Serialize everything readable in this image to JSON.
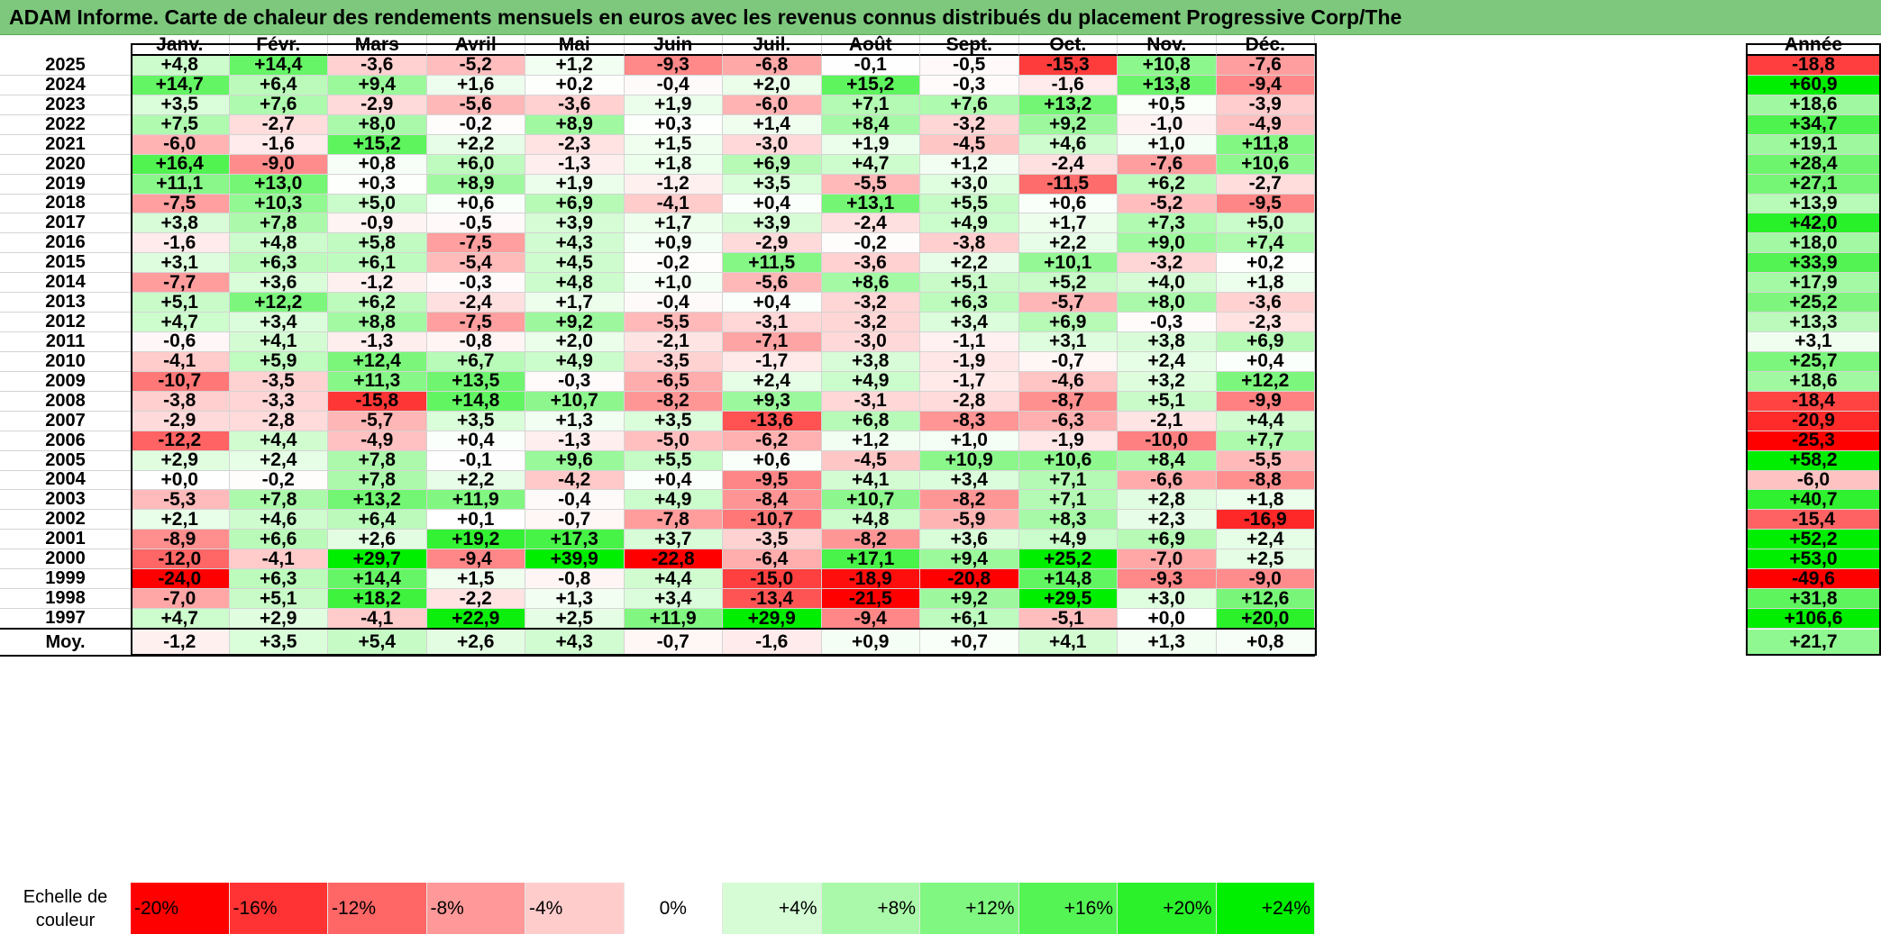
{
  "title": "ADAM Informe. Carte de chaleur des rendements mensuels en euros avec les revenus connus distribués du placement Progressive Corp/The",
  "chart_data": {
    "type": "heatmap",
    "columns": [
      "Janv.",
      "Févr.",
      "Mars",
      "Avril",
      "Mai",
      "Juin",
      "Juil.",
      "Août",
      "Sept.",
      "Oct.",
      "Nov.",
      "Déc."
    ],
    "annual_header": "Année",
    "rows": [
      {
        "year": "2025",
        "values": [
          "+4,8",
          "+14,4",
          "-3,6",
          "-5,2",
          "+1,2",
          "-9,3",
          "-6,8",
          "-0,1",
          "-0,5",
          "-15,3",
          "+10,8",
          "-7,6"
        ],
        "annual": "-18,8"
      },
      {
        "year": "2024",
        "values": [
          "+14,7",
          "+6,4",
          "+9,4",
          "+1,6",
          "+0,2",
          "-0,4",
          "+2,0",
          "+15,2",
          "-0,3",
          "-1,6",
          "+13,8",
          "-9,4"
        ],
        "annual": "+60,9"
      },
      {
        "year": "2023",
        "values": [
          "+3,5",
          "+7,6",
          "-2,9",
          "-5,6",
          "-3,6",
          "+1,9",
          "-6,0",
          "+7,1",
          "+7,6",
          "+13,2",
          "+0,5",
          "-3,9"
        ],
        "annual": "+18,6"
      },
      {
        "year": "2022",
        "values": [
          "+7,5",
          "-2,7",
          "+8,0",
          "-0,2",
          "+8,9",
          "+0,3",
          "+1,4",
          "+8,4",
          "-3,2",
          "+9,2",
          "-1,0",
          "-4,9"
        ],
        "annual": "+34,7"
      },
      {
        "year": "2021",
        "values": [
          "-6,0",
          "-1,6",
          "+15,2",
          "+2,2",
          "-2,3",
          "+1,5",
          "-3,0",
          "+1,9",
          "-4,5",
          "+4,6",
          "+1,0",
          "+11,8"
        ],
        "annual": "+19,1"
      },
      {
        "year": "2020",
        "values": [
          "+16,4",
          "-9,0",
          "+0,8",
          "+6,0",
          "-1,3",
          "+1,8",
          "+6,9",
          "+4,7",
          "+1,2",
          "-2,4",
          "-7,6",
          "+10,6"
        ],
        "annual": "+28,4"
      },
      {
        "year": "2019",
        "values": [
          "+11,1",
          "+13,0",
          "+0,3",
          "+8,9",
          "+1,9",
          "-1,2",
          "+3,5",
          "-5,5",
          "+3,0",
          "-11,5",
          "+6,2",
          "-2,7"
        ],
        "annual": "+27,1"
      },
      {
        "year": "2018",
        "values": [
          "-7,5",
          "+10,3",
          "+5,0",
          "+0,6",
          "+6,9",
          "-4,1",
          "+0,4",
          "+13,1",
          "+5,5",
          "+0,6",
          "-5,2",
          "-9,5"
        ],
        "annual": "+13,9"
      },
      {
        "year": "2017",
        "values": [
          "+3,8",
          "+7,8",
          "-0,9",
          "-0,5",
          "+3,9",
          "+1,7",
          "+3,9",
          "-2,4",
          "+4,9",
          "+1,7",
          "+7,3",
          "+5,0"
        ],
        "annual": "+42,0"
      },
      {
        "year": "2016",
        "values": [
          "-1,6",
          "+4,8",
          "+5,8",
          "-7,5",
          "+4,3",
          "+0,9",
          "-2,9",
          "-0,2",
          "-3,8",
          "+2,2",
          "+9,0",
          "+7,4"
        ],
        "annual": "+18,0"
      },
      {
        "year": "2015",
        "values": [
          "+3,1",
          "+6,3",
          "+6,1",
          "-5,4",
          "+4,5",
          "-0,2",
          "+11,5",
          "-3,6",
          "+2,2",
          "+10,1",
          "-3,2",
          "+0,2"
        ],
        "annual": "+33,9"
      },
      {
        "year": "2014",
        "values": [
          "-7,7",
          "+3,6",
          "-1,2",
          "-0,3",
          "+4,8",
          "+1,0",
          "-5,6",
          "+8,6",
          "+5,1",
          "+5,2",
          "+4,0",
          "+1,8"
        ],
        "annual": "+17,9"
      },
      {
        "year": "2013",
        "values": [
          "+5,1",
          "+12,2",
          "+6,2",
          "-2,4",
          "+1,7",
          "-0,4",
          "+0,4",
          "-3,2",
          "+6,3",
          "-5,7",
          "+8,0",
          "-3,6"
        ],
        "annual": "+25,2"
      },
      {
        "year": "2012",
        "values": [
          "+4,7",
          "+3,4",
          "+8,8",
          "-7,5",
          "+9,2",
          "-5,5",
          "-3,1",
          "-3,2",
          "+3,4",
          "+6,9",
          "-0,3",
          "-2,3"
        ],
        "annual": "+13,3"
      },
      {
        "year": "2011",
        "values": [
          "-0,6",
          "+4,1",
          "-1,3",
          "-0,8",
          "+2,0",
          "-2,1",
          "-7,1",
          "-3,0",
          "-1,1",
          "+3,1",
          "+3,8",
          "+6,9"
        ],
        "annual": "+3,1"
      },
      {
        "year": "2010",
        "values": [
          "-4,1",
          "+5,9",
          "+12,4",
          "+6,7",
          "+4,9",
          "-3,5",
          "-1,7",
          "+3,8",
          "-1,9",
          "-0,7",
          "+2,4",
          "+0,4"
        ],
        "annual": "+25,7"
      },
      {
        "year": "2009",
        "values": [
          "-10,7",
          "-3,5",
          "+11,3",
          "+13,5",
          "-0,3",
          "-6,5",
          "+2,4",
          "+4,9",
          "-1,7",
          "-4,6",
          "+3,2",
          "+12,2"
        ],
        "annual": "+18,6"
      },
      {
        "year": "2008",
        "values": [
          "-3,8",
          "-3,3",
          "-15,8",
          "+14,8",
          "+10,7",
          "-8,2",
          "+9,3",
          "-3,1",
          "-2,8",
          "-8,7",
          "+5,1",
          "-9,9"
        ],
        "annual": "-18,4"
      },
      {
        "year": "2007",
        "values": [
          "-2,9",
          "-2,8",
          "-5,7",
          "+3,5",
          "+1,3",
          "+3,5",
          "-13,6",
          "+6,8",
          "-8,3",
          "-6,3",
          "-2,1",
          "+4,4"
        ],
        "annual": "-20,9"
      },
      {
        "year": "2006",
        "values": [
          "-12,2",
          "+4,4",
          "-4,9",
          "+0,4",
          "-1,3",
          "-5,0",
          "-6,2",
          "+1,2",
          "+1,0",
          "-1,9",
          "-10,0",
          "+7,7"
        ],
        "annual": "-25,3"
      },
      {
        "year": "2005",
        "values": [
          "+2,9",
          "+2,4",
          "+7,8",
          "-0,1",
          "+9,6",
          "+5,5",
          "+0,6",
          "-4,5",
          "+10,9",
          "+10,6",
          "+8,4",
          "-5,5"
        ],
        "annual": "+58,2"
      },
      {
        "year": "2004",
        "values": [
          "+0,0",
          "-0,2",
          "+7,8",
          "+2,2",
          "-4,2",
          "+0,4",
          "-9,5",
          "+4,1",
          "+3,4",
          "+7,1",
          "-6,6",
          "-8,8"
        ],
        "annual": "-6,0"
      },
      {
        "year": "2003",
        "values": [
          "-5,3",
          "+7,8",
          "+13,2",
          "+11,9",
          "-0,4",
          "+4,9",
          "-8,4",
          "+10,7",
          "-8,2",
          "+7,1",
          "+2,8",
          "+1,8"
        ],
        "annual": "+40,7"
      },
      {
        "year": "2002",
        "values": [
          "+2,1",
          "+4,6",
          "+6,4",
          "+0,1",
          "-0,7",
          "-7,8",
          "-10,7",
          "+4,8",
          "-5,9",
          "+8,3",
          "+2,3",
          "-16,9"
        ],
        "annual": "-15,4"
      },
      {
        "year": "2001",
        "values": [
          "-8,9",
          "+6,6",
          "+2,6",
          "+19,2",
          "+17,3",
          "+3,7",
          "-3,5",
          "-8,2",
          "+3,6",
          "+4,9",
          "+6,9",
          "+2,4"
        ],
        "annual": "+52,2"
      },
      {
        "year": "2000",
        "values": [
          "-12,0",
          "-4,1",
          "+29,7",
          "-9,4",
          "+39,9",
          "-22,8",
          "-6,4",
          "+17,1",
          "+9,4",
          "+25,2",
          "-7,0",
          "+2,5"
        ],
        "annual": "+53,0"
      },
      {
        "year": "1999",
        "values": [
          "-24,0",
          "+6,3",
          "+14,4",
          "+1,5",
          "-0,8",
          "+4,4",
          "-15,0",
          "-18,9",
          "-20,8",
          "+14,8",
          "-9,3",
          "-9,0"
        ],
        "annual": "-49,6"
      },
      {
        "year": "1998",
        "values": [
          "-7,0",
          "+5,1",
          "+18,2",
          "-2,2",
          "+1,3",
          "+3,4",
          "-13,4",
          "-21,5",
          "+9,2",
          "+29,5",
          "+3,0",
          "+12,6"
        ],
        "annual": "+31,8"
      },
      {
        "year": "1997",
        "values": [
          "+4,7",
          "+2,9",
          "-4,1",
          "+22,9",
          "+2,5",
          "+11,9",
          "+29,9",
          "-9,4",
          "+6,1",
          "-5,1",
          "+0,0",
          "+20,0"
        ],
        "annual": "+106,6"
      }
    ],
    "average": {
      "label": "Moy.",
      "values": [
        "-1,2",
        "+3,5",
        "+5,4",
        "+2,6",
        "+4,3",
        "-0,7",
        "-1,6",
        "+0,9",
        "+0,7",
        "+4,1",
        "+1,3",
        "+0,8"
      ],
      "annual": "+21,7"
    },
    "legend": {
      "label": "Echelle de couleur",
      "items": [
        {
          "text": "-20%",
          "value": -20,
          "align": "left"
        },
        {
          "text": "-16%",
          "value": -16,
          "align": "left"
        },
        {
          "text": "-12%",
          "value": -12,
          "align": "left"
        },
        {
          "text": "-8%",
          "value": -8,
          "align": "left"
        },
        {
          "text": "-4%",
          "value": -4,
          "align": "left"
        },
        {
          "text": "0%",
          "value": 0,
          "align": "center"
        },
        {
          "text": "+4%",
          "value": 4,
          "align": "right"
        },
        {
          "text": "+8%",
          "value": 8,
          "align": "right"
        },
        {
          "text": "+12%",
          "value": 12,
          "align": "right"
        },
        {
          "text": "+16%",
          "value": 16,
          "align": "right"
        },
        {
          "text": "+20%",
          "value": 20,
          "align": "right"
        },
        {
          "text": "+24%",
          "value": 24,
          "align": "right"
        }
      ]
    },
    "colors": {
      "negative_max": "#ff0000",
      "neutral": "#ffffff",
      "positive_max": "#00ee00",
      "title_bar": "#7dc87d"
    },
    "color_scale": {
      "monthly_min": -20,
      "monthly_max": 24,
      "annual_min": -25,
      "annual_max": 50
    }
  }
}
